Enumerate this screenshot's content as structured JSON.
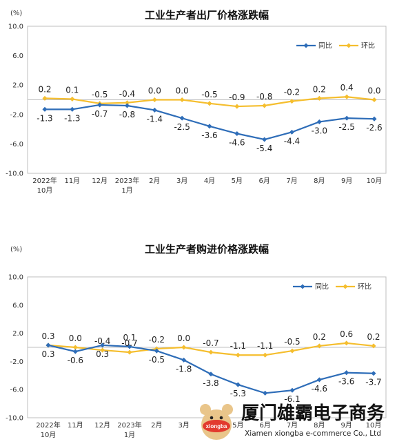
{
  "chart_data": [
    {
      "type": "line",
      "title": "工业生产者出厂价格涨跌幅",
      "unit_label": "(%)",
      "ylim": [
        -10.0,
        10.0
      ],
      "yticks": [
        "10.0",
        "6.0",
        "2.0",
        "-2.0",
        "-6.0",
        "-10.0"
      ],
      "categories": [
        [
          "2022年",
          "10月"
        ],
        [
          "11月"
        ],
        [
          "12月"
        ],
        [
          "2023年",
          "1月"
        ],
        [
          "2月"
        ],
        [
          "3月"
        ],
        [
          "4月"
        ],
        [
          "5月"
        ],
        [
          "6月"
        ],
        [
          "7月"
        ],
        [
          "8月"
        ],
        [
          "9月"
        ],
        [
          "10月"
        ]
      ],
      "series": [
        {
          "name": "同比",
          "color": "#2E6DB8",
          "values": [
            -1.3,
            -1.3,
            -0.7,
            -0.8,
            -1.4,
            -2.5,
            -3.6,
            -4.6,
            -5.4,
            -4.4,
            -3.0,
            -2.5,
            -2.6
          ],
          "labels": [
            "-1.3",
            "-1.3",
            "-0.7",
            "-0.8",
            "-1.4",
            "-2.5",
            "-3.6",
            "-4.6",
            "-5.4",
            "-4.4",
            "-3.0",
            "-2.5",
            "-2.6"
          ]
        },
        {
          "name": "环比",
          "color": "#F5BE2E",
          "values": [
            0.2,
            0.1,
            -0.5,
            -0.4,
            0.0,
            0.0,
            -0.5,
            -0.9,
            -0.8,
            -0.2,
            0.2,
            0.4,
            0.0
          ],
          "labels": [
            "0.2",
            "0.1",
            "-0.5",
            "-0.4",
            "0.0",
            "0.0",
            "-0.5",
            "-0.9",
            "-0.8",
            "-0.2",
            "0.2",
            "0.4",
            "0.0"
          ]
        }
      ],
      "legend_position": "top-right",
      "grid": false
    },
    {
      "type": "line",
      "title": "工业生产者购进价格涨跌幅",
      "unit_label": "(%)",
      "ylim": [
        -10.0,
        10.0
      ],
      "yticks": [
        "10.0",
        "6.0",
        "2.0",
        "-2.0",
        "-6.0",
        "-10.0"
      ],
      "categories": [
        [
          "2022年",
          "10月"
        ],
        [
          "11月"
        ],
        [
          "12月"
        ],
        [
          "2023年",
          "1月"
        ],
        [
          "2月"
        ],
        [
          "3月"
        ],
        [
          "4月"
        ],
        [
          "5月"
        ],
        [
          "6月"
        ],
        [
          "7月"
        ],
        [
          "8月"
        ],
        [
          "9月"
        ],
        [
          "10月"
        ]
      ],
      "series": [
        {
          "name": "同比",
          "color": "#2E6DB8",
          "values": [
            0.3,
            -0.6,
            0.3,
            0.1,
            -0.5,
            -1.8,
            -3.8,
            -5.3,
            -6.5,
            -6.1,
            -4.6,
            -3.6,
            -3.7
          ],
          "labels": [
            "0.3",
            "-0.6",
            "0.3",
            "",
            "-0.5",
            "-1.8",
            "-3.8",
            "-5.3",
            "",
            "-6.1",
            "-4.6",
            "-3.6",
            "-3.7"
          ]
        },
        {
          "name": "环比",
          "color": "#F5BE2E",
          "values": [
            0.3,
            0.0,
            -0.4,
            -0.7,
            -0.2,
            0.0,
            -0.7,
            -1.1,
            -1.1,
            -0.5,
            0.2,
            0.6,
            0.2
          ],
          "labels": [
            "0.3",
            "0.0",
            "-0.4",
            "-0.7",
            "-0.2",
            "0.0",
            "-0.7",
            "-1.1",
            "-1.1",
            "-0.5",
            "0.2",
            "0.6",
            "0.2"
          ]
        }
      ],
      "extra_labels": [
        "0.1"
      ],
      "legend_position": "top-right",
      "grid": false
    }
  ],
  "watermark": {
    "logo_text": "xiongba",
    "title": "厦门雄霸电子商务",
    "subtitle": "Xiamen xiongba e-commerce Co., Ltd"
  }
}
